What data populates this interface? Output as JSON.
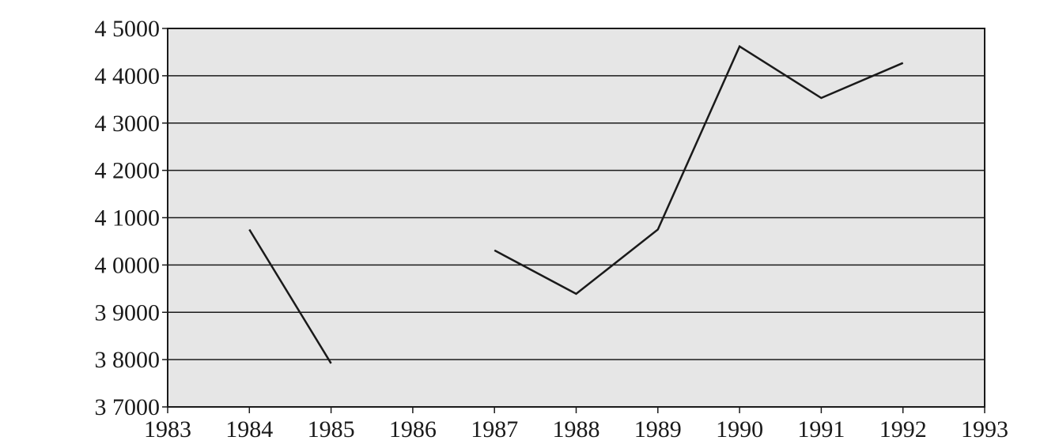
{
  "chart_data": {
    "type": "line",
    "x": [
      1984,
      1985,
      1986,
      1987,
      1988,
      1989,
      1990,
      1991,
      1992
    ],
    "series": [
      {
        "color": "#1a1a1a",
        "values": [
          40750,
          37920,
          null,
          40310,
          39390,
          40750,
          44620,
          43530,
          44270
        ]
      }
    ],
    "xlim": [
      1983,
      1993
    ],
    "xticks": [
      1983,
      1984,
      1985,
      1986,
      1987,
      1988,
      1989,
      1990,
      1991,
      1992,
      1993
    ],
    "ylim": [
      37000,
      45000
    ],
    "yticks": [
      {
        "value": 37000,
        "label": "3 7000"
      },
      {
        "value": 38000,
        "label": "3 8000"
      },
      {
        "value": 39000,
        "label": "3 9000"
      },
      {
        "value": 40000,
        "label": "4 0000"
      },
      {
        "value": 41000,
        "label": "4 1000"
      },
      {
        "value": 42000,
        "label": "4 2000"
      },
      {
        "value": 43000,
        "label": "4 3000"
      },
      {
        "value": 44000,
        "label": "4 4000"
      },
      {
        "value": 45000,
        "label": "4 5000"
      }
    ],
    "grid": true
  }
}
